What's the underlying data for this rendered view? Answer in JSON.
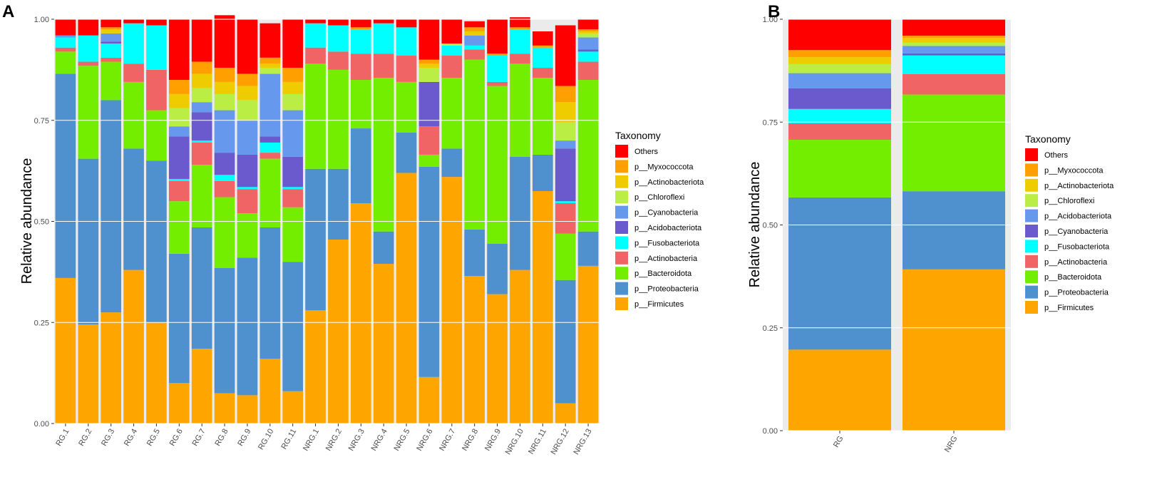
{
  "chart_data": [
    {
      "panel": "A",
      "type": "bar",
      "stacked": true,
      "title": "",
      "xlabel": "",
      "ylabel": "Relative abundance",
      "ylim": [
        0,
        1
      ],
      "yticks": [
        "0.00",
        "0.25",
        "0.50",
        "0.75",
        "1.00"
      ],
      "legend_title": "Taxonomy",
      "legend_position": "right",
      "categories": [
        "RG.1",
        "RG.2",
        "RG.3",
        "RG.4",
        "RG.5",
        "RG.6",
        "RG.7",
        "RG.8",
        "RG.9",
        "RG.10",
        "RG.11",
        "NRG.1",
        "NRG.2",
        "NRG.3",
        "NRG.4",
        "NRG.5",
        "NRG.6",
        "NRG.7",
        "NRG.8",
        "NRG.9",
        "NRG.10",
        "NRG.11",
        "NRG.12",
        "NRG.13"
      ],
      "series": [
        {
          "name": "p__Firmicutes",
          "color": "#FFA500",
          "values": [
            0.36,
            0.245,
            0.275,
            0.38,
            0.25,
            0.1,
            0.185,
            0.075,
            0.07,
            0.16,
            0.08,
            0.28,
            0.455,
            0.545,
            0.395,
            0.62,
            0.115,
            0.61,
            0.365,
            0.32,
            0.38,
            0.575,
            0.05,
            0.39
          ]
        },
        {
          "name": "p__Proteobacteria",
          "color": "#4E91CE",
          "values": [
            0.505,
            0.41,
            0.525,
            0.3,
            0.4,
            0.32,
            0.3,
            0.31,
            0.34,
            0.325,
            0.32,
            0.35,
            0.175,
            0.185,
            0.08,
            0.1,
            0.52,
            0.07,
            0.115,
            0.125,
            0.28,
            0.09,
            0.305,
            0.085
          ]
        },
        {
          "name": "p__Bacteroidota",
          "color": "#74EE00",
          "values": [
            0.055,
            0.23,
            0.095,
            0.165,
            0.125,
            0.13,
            0.155,
            0.175,
            0.11,
            0.17,
            0.135,
            0.26,
            0.245,
            0.12,
            0.38,
            0.125,
            0.03,
            0.175,
            0.42,
            0.39,
            0.23,
            0.19,
            0.115,
            0.375
          ]
        },
        {
          "name": "p__Actinobacteria",
          "color": "#F06466",
          "values": [
            0.01,
            0.01,
            0.01,
            0.045,
            0.1,
            0.05,
            0.055,
            0.04,
            0.06,
            0.015,
            0.045,
            0.04,
            0.045,
            0.065,
            0.06,
            0.065,
            0.07,
            0.055,
            0.025,
            0.01,
            0.025,
            0.025,
            0.075,
            0.045
          ]
        },
        {
          "name": "p__Fusobacteriota",
          "color": "#00FFFF",
          "values": [
            0.025,
            0.065,
            0.035,
            0.1,
            0.11,
            0.005,
            0.005,
            0.015,
            0.005,
            0.025,
            0.005,
            0.06,
            0.065,
            0.06,
            0.075,
            0.07,
            0.0,
            0.025,
            0.01,
            0.065,
            0.06,
            0.05,
            0.005,
            0.025
          ]
        },
        {
          "name": "p__Acidobacteriota",
          "color": "#6A5ACD",
          "values": [
            0.0,
            0.0,
            0.005,
            0.0,
            0.0,
            0.105,
            0.07,
            0.055,
            0.08,
            0.015,
            0.075,
            0.0,
            0.0,
            0.0,
            0.0,
            0.0,
            0.11,
            0.0,
            0.0,
            0.0,
            0.0,
            0.0,
            0.13,
            0.005
          ]
        },
        {
          "name": "p__Cyanobacteria",
          "color": "#6699EE",
          "values": [
            0.005,
            0.0,
            0.02,
            0.0,
            0.0,
            0.025,
            0.025,
            0.105,
            0.085,
            0.155,
            0.115,
            0.0,
            0.0,
            0.0,
            0.0,
            0.0,
            0.0,
            0.0,
            0.025,
            0.0,
            0.0,
            0.0,
            0.02,
            0.03
          ]
        },
        {
          "name": "p__Chloroflexi",
          "color": "#BBEE44",
          "values": [
            0.0,
            0.0,
            0.0,
            0.0,
            0.0,
            0.045,
            0.035,
            0.04,
            0.05,
            0.015,
            0.04,
            0.0,
            0.0,
            0.0,
            0.0,
            0.0,
            0.035,
            0.005,
            0.0,
            0.0,
            0.0,
            0.0,
            0.045,
            0.01
          ]
        },
        {
          "name": "p__Actinobacteriota",
          "color": "#EECC00",
          "values": [
            0.0,
            0.0,
            0.01,
            0.0,
            0.0,
            0.035,
            0.035,
            0.03,
            0.035,
            0.01,
            0.03,
            0.0,
            0.0,
            0.0,
            0.0,
            0.0,
            0.01,
            0.0,
            0.01,
            0.0,
            0.0,
            0.0,
            0.05,
            0.005
          ]
        },
        {
          "name": "p__Myxococcota",
          "color": "#FFA000",
          "values": [
            0.0,
            0.0,
            0.005,
            0.0,
            0.0,
            0.035,
            0.03,
            0.035,
            0.03,
            0.015,
            0.035,
            0.0,
            0.0,
            0.005,
            0.0,
            0.0,
            0.01,
            0.0,
            0.01,
            0.005,
            0.005,
            0.005,
            0.04,
            0.005
          ]
        },
        {
          "name": "Others",
          "color": "#FF0000",
          "values": [
            0.04,
            0.04,
            0.02,
            0.01,
            0.015,
            0.15,
            0.105,
            0.13,
            0.135,
            0.085,
            0.12,
            0.01,
            0.015,
            0.02,
            0.01,
            0.02,
            0.1,
            0.06,
            0.015,
            0.085,
            0.025,
            0.035,
            0.15,
            0.025
          ]
        }
      ]
    },
    {
      "panel": "B",
      "type": "bar",
      "stacked": true,
      "title": "",
      "xlabel": "",
      "ylabel": "Relative abundance",
      "ylim": [
        0,
        1
      ],
      "yticks": [
        "0.00",
        "0.25",
        "0.50",
        "0.75",
        "1.00"
      ],
      "legend_title": "Taxonomy",
      "legend_position": "right",
      "categories": [
        "RG",
        "NRG"
      ],
      "series": [
        {
          "name": "p__Firmicutes",
          "color": "#FFA500",
          "values": [
            0.197,
            0.392
          ]
        },
        {
          "name": "p__Proteobacteria",
          "color": "#4E91CE",
          "values": [
            0.37,
            0.19
          ]
        },
        {
          "name": "p__Bacteroidota",
          "color": "#74EE00",
          "values": [
            0.14,
            0.235
          ]
        },
        {
          "name": "p__Actinobacteria",
          "color": "#F06466",
          "values": [
            0.04,
            0.05
          ]
        },
        {
          "name": "p__Fusobacteriota",
          "color": "#00FFFF",
          "values": [
            0.035,
            0.045
          ]
        },
        {
          "name": "p__Cyanobacteria",
          "color": "#6A5ACD",
          "values": [
            0.05,
            0.005
          ]
        },
        {
          "name": "p__Acidobacteriota",
          "color": "#6699EE",
          "values": [
            0.037,
            0.018
          ]
        },
        {
          "name": "p__Chloroflexi",
          "color": "#BBEE44",
          "values": [
            0.022,
            0.008
          ]
        },
        {
          "name": "p__Actinobacteriota",
          "color": "#EECC00",
          "values": [
            0.017,
            0.012
          ]
        },
        {
          "name": "p__Myxococcota",
          "color": "#FFA000",
          "values": [
            0.017,
            0.005
          ]
        },
        {
          "name": "Others",
          "color": "#FF0000",
          "values": [
            0.075,
            0.04
          ]
        }
      ]
    }
  ]
}
